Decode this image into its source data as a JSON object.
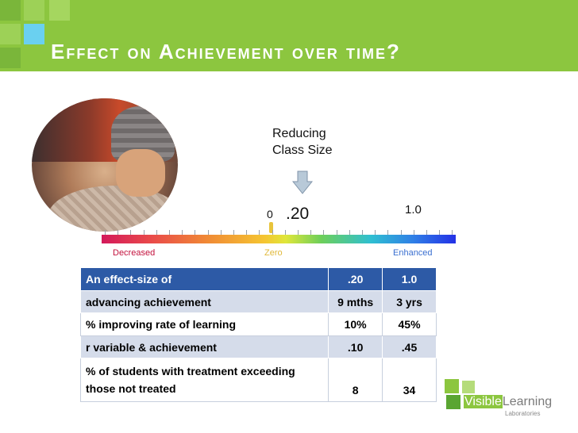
{
  "slide": {
    "title": "Effect on Achievement over time?",
    "intervention_label": "Reducing Class Size",
    "scale": {
      "origin_label": "0",
      "marked_value": ".20",
      "max_label": "1.0",
      "left_label": "Decreased",
      "middle_label": "Zero",
      "right_label": "Enhanced"
    }
  },
  "table": {
    "rows": [
      {
        "label": "An effect-size of",
        "v1": ".20",
        "v2": "1.0"
      },
      {
        "label": "advancing achievement",
        "v1": "9 mths",
        "v2": "3 yrs"
      },
      {
        "label": "% improving rate of learning",
        "v1": "10%",
        "v2": "45%"
      },
      {
        "label": "r variable & achievement",
        "v1": ".10",
        "v2": ".45"
      },
      {
        "label": "% of students with treatment exceeding those not treated",
        "v1": "8",
        "v2": "34"
      }
    ]
  },
  "logo": {
    "word_part1": "Visible",
    "word_part2": "Learning",
    "subtitle": "Laboratories"
  },
  "colors": {
    "banner": "#8cc63f",
    "table_header": "#2d5aa6",
    "table_band": "#d5dcea"
  }
}
